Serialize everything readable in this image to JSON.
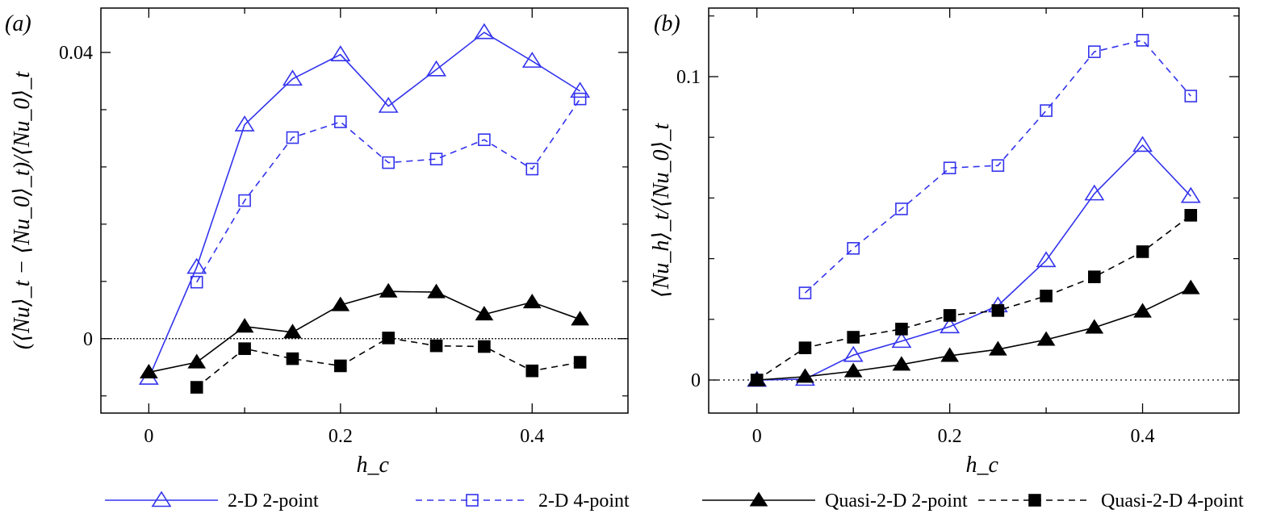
{
  "colors": {
    "blue": "#3333ee",
    "black": "#000000"
  },
  "legend": [
    "2-D 2-point",
    "2-D 4-point",
    "Quasi-2-D 2-point",
    "Quasi-2-D 4-point"
  ],
  "chart_data": [
    {
      "type": "line",
      "panel_label": "(a)",
      "xlabel": "h_c",
      "ylabel": "(⟨Nu⟩_t − ⟨Nu_0⟩_t)/⟨Nu_0⟩_t",
      "xlim": [
        -0.05,
        0.5
      ],
      "ylim": [
        -0.0104,
        0.0462
      ],
      "xticks": [
        0,
        0.2,
        0.4
      ],
      "xtick_labels": [
        "0",
        "0.2",
        "0.4"
      ],
      "yticks": [
        0,
        0.04
      ],
      "ytick_labels": [
        "0",
        "0.04"
      ],
      "reference_line": 0,
      "series": [
        {
          "name": "2-D 2-point",
          "marker": "triangle-open",
          "color": "#3333ee",
          "dash": false,
          "x": [
            0,
            0.05,
            0.1,
            0.15,
            0.2,
            0.25,
            0.3,
            0.35,
            0.4,
            0.45
          ],
          "y": [
            -0.0055,
            0.01,
            0.0299,
            0.0363,
            0.0397,
            0.0325,
            0.0376,
            0.0428,
            0.0388,
            0.0346
          ]
        },
        {
          "name": "2-D 4-point",
          "marker": "square-open",
          "color": "#3333ee",
          "dash": true,
          "x": [
            0.05,
            0.1,
            0.15,
            0.2,
            0.25,
            0.3,
            0.35,
            0.4,
            0.45
          ],
          "y": [
            0.0079,
            0.0193,
            0.0281,
            0.0303,
            0.0246,
            0.0251,
            0.0278,
            0.0237,
            0.0335
          ]
        },
        {
          "name": "Quasi-2-D 2-point",
          "marker": "triangle-filled",
          "color": "#000000",
          "dash": false,
          "x": [
            0,
            0.05,
            0.1,
            0.15,
            0.2,
            0.25,
            0.3,
            0.35,
            0.4,
            0.45
          ],
          "y": [
            -0.0047,
            -0.0033,
            0.0017,
            0.0009,
            0.0047,
            0.0066,
            0.0065,
            0.0034,
            0.0051,
            0.0027
          ]
        },
        {
          "name": "Quasi-2-D 4-point",
          "marker": "square-filled",
          "color": "#000000",
          "dash": true,
          "x": [
            0.05,
            0.1,
            0.15,
            0.2,
            0.25,
            0.3,
            0.35,
            0.4,
            0.45
          ],
          "y": [
            -0.0068,
            -0.0014,
            -0.0028,
            -0.0038,
            0.0001,
            -0.001,
            -0.0011,
            -0.0045,
            -0.0033
          ]
        }
      ]
    },
    {
      "type": "line",
      "panel_label": "(b)",
      "xlabel": "h_c",
      "ylabel": "⟨Nu_h⟩_t/⟨Nu_0⟩_t",
      "xlim": [
        -0.05,
        0.5
      ],
      "ylim": [
        -0.0109,
        0.1226
      ],
      "xticks": [
        0,
        0.2,
        0.4
      ],
      "xtick_labels": [
        "0",
        "0.2",
        "0.4"
      ],
      "yticks": [
        0,
        0.1
      ],
      "ytick_labels": [
        "0",
        "0.1"
      ],
      "reference_line": 0,
      "series": [
        {
          "name": "2-D 2-point",
          "marker": "triangle-open",
          "color": "#3333ee",
          "dash": false,
          "x": [
            0,
            0.05,
            0.1,
            0.15,
            0.2,
            0.25,
            0.3,
            0.35,
            0.4,
            0.45
          ],
          "y": [
            0,
            0.0003,
            0.0082,
            0.0128,
            0.0176,
            0.0245,
            0.0394,
            0.0614,
            0.0774,
            0.0606
          ]
        },
        {
          "name": "2-D 4-point",
          "marker": "square-open",
          "color": "#3333ee",
          "dash": true,
          "x": [
            0.05,
            0.1,
            0.15,
            0.2,
            0.25,
            0.3,
            0.35,
            0.4,
            0.45
          ],
          "y": [
            0.0287,
            0.0434,
            0.0564,
            0.0699,
            0.0707,
            0.0888,
            0.1082,
            0.112,
            0.0936
          ]
        },
        {
          "name": "Quasi-2-D 2-point",
          "marker": "triangle-filled",
          "color": "#000000",
          "dash": false,
          "x": [
            0,
            0.05,
            0.1,
            0.15,
            0.2,
            0.25,
            0.3,
            0.35,
            0.4,
            0.45
          ],
          "y": [
            0,
            0.0011,
            0.0029,
            0.0051,
            0.008,
            0.0101,
            0.0133,
            0.0173,
            0.0226,
            0.0303
          ]
        },
        {
          "name": "Quasi-2-D 4-point",
          "marker": "square-filled",
          "color": "#000000",
          "dash": true,
          "x": [
            0,
            0.05,
            0.1,
            0.15,
            0.2,
            0.25,
            0.3,
            0.35,
            0.4,
            0.45
          ],
          "y": [
            0,
            0.0106,
            0.0141,
            0.0168,
            0.0213,
            0.0229,
            0.0277,
            0.034,
            0.0423,
            0.0543
          ]
        }
      ]
    }
  ]
}
